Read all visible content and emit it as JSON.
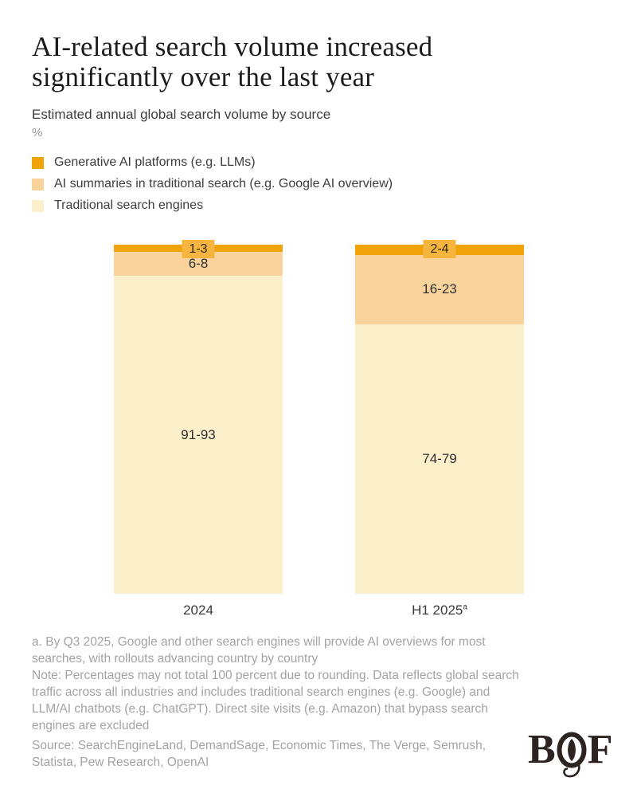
{
  "title": {
    "line1": "AI-related search volume increased",
    "line2": "significantly over the last year"
  },
  "subtitle": "Estimated annual global search volume by source",
  "unit_label": "%",
  "chart_data": {
    "type": "bar",
    "stacked": true,
    "unit": "%",
    "ylim": [
      0,
      100
    ],
    "grid": false,
    "legend_position": "top-left",
    "categories": [
      {
        "label": "2024",
        "footnote_marker": ""
      },
      {
        "label": "H1 2025",
        "footnote_marker": "a"
      }
    ],
    "series": [
      {
        "name": "Generative AI platforms (e.g. LLMs)",
        "color": "#F0A30A",
        "badge_color": "#F6B53E",
        "values_range": [
          [
            1,
            3
          ],
          [
            2,
            4
          ]
        ],
        "value_labels": [
          "1-3",
          "2-4"
        ],
        "midpoints": [
          2,
          3
        ]
      },
      {
        "name": "AI summaries in traditional search (e.g. Google AI overview)",
        "color": "#FAD29B",
        "values_range": [
          [
            6,
            8
          ],
          [
            16,
            23
          ]
        ],
        "value_labels": [
          "6-8",
          "16-23"
        ],
        "midpoints": [
          7,
          19.5
        ]
      },
      {
        "name": "Traditional search engines",
        "color": "#FCF0CB",
        "values_range": [
          [
            91,
            93
          ],
          [
            74,
            79
          ]
        ],
        "value_labels": [
          "91-93",
          "74-79"
        ],
        "midpoints": [
          92,
          76.5
        ]
      }
    ]
  },
  "footnotes": {
    "footnote_a": "a. By Q3 2025, Google and other search engines will provide AI overviews for most searches, with rollouts advancing country by country",
    "note": "Note: Percentages may not total 100 percent due to rounding. Data reflects global search traffic across all industries and includes traditional search engines (e.g. Google) and LLM/AI chatbots (e.g. ChatGPT). Direct site visits (e.g. Amazon) that bypass search engines are excluded",
    "source": "Source: SearchEngineLand, DemandSage, Economic Times, The Verge, Semrush, Statista, Pew Research, OpenAI"
  },
  "logo": {
    "name": "BoF",
    "letter_b": "B",
    "letter_f": "F"
  }
}
